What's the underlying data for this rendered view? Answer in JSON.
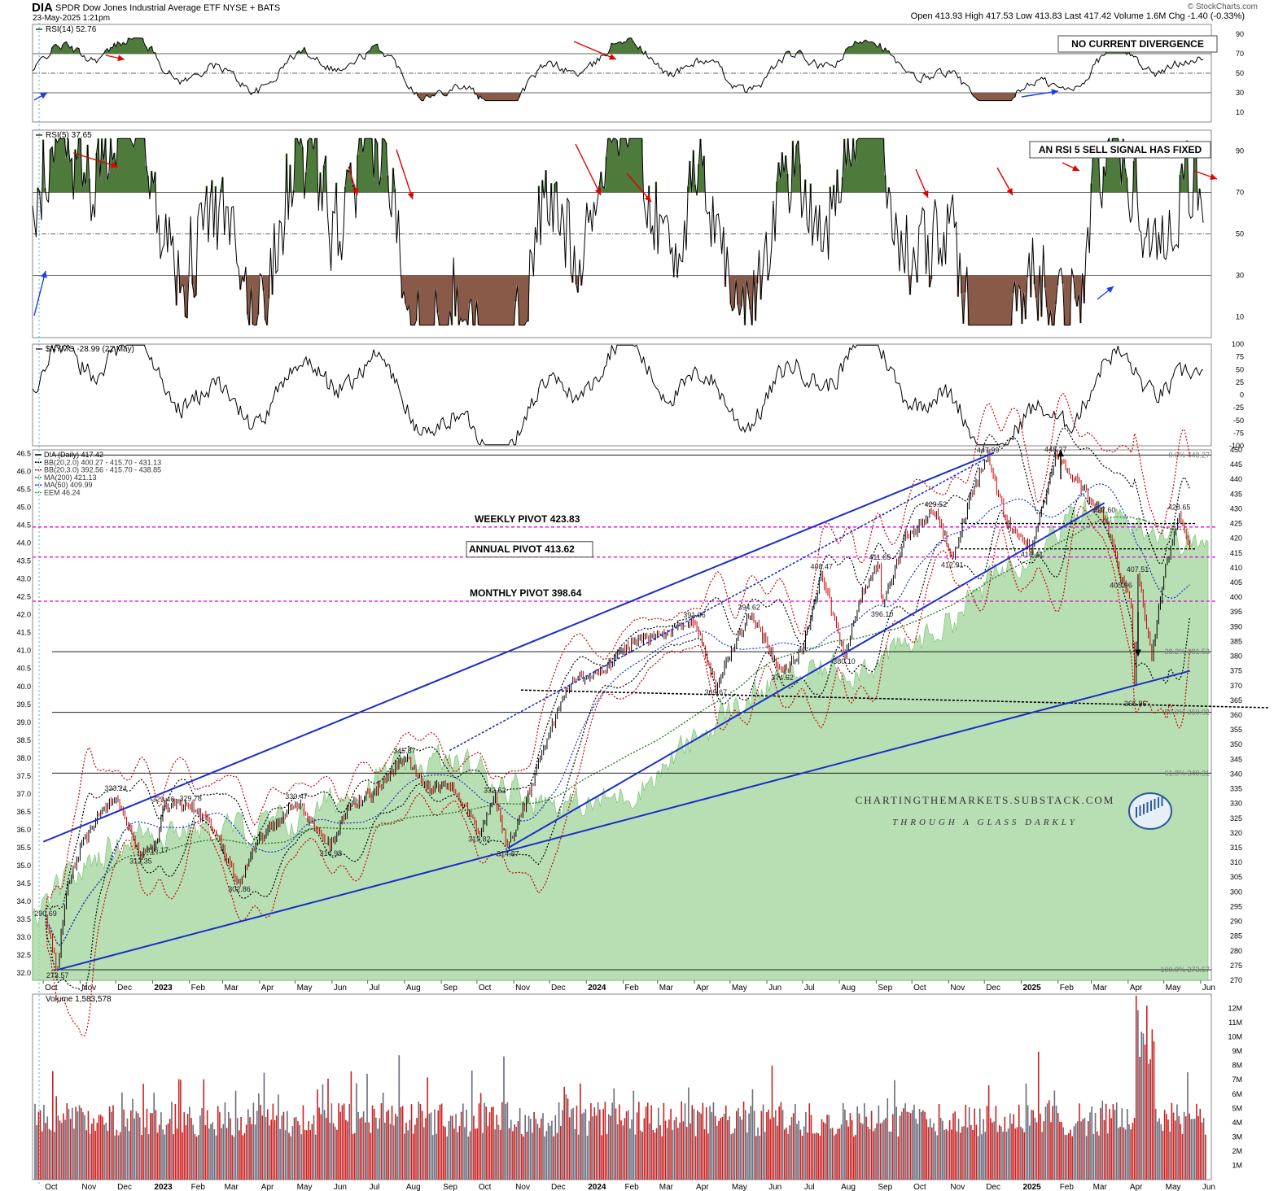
{
  "header": {
    "symbol": "DIA",
    "name": "SPDR Dow Jones Industrial Average ETF  NYSE + BATS",
    "date": "23-May-2025 1:21pm",
    "quote": "Open 413.93  High 417.53  Low 413.83  Last 417.42  Volume 1.6M  Chg -1.40 (-0.33%)",
    "watermark": "© StockCharts.com"
  },
  "colors": {
    "rsi_fill_over": "#4e7a3c",
    "rsi_fill_under": "#8a5a48",
    "trendline": "#1a2ec9",
    "pivot": "#e000e0",
    "eem_area": "#9fd49a",
    "bb_black": "#000000",
    "bb_red": "#cc0000",
    "ma200": "#2a7a2a",
    "ma50": "#1a2ec9",
    "arrow_red": "#e00000",
    "arrow_blue": "#1a3ee8",
    "vol_up": "#6a6a7a",
    "vol_down": "#cc2020"
  },
  "months": [
    "Oct",
    "Nov",
    "Dec",
    "2023",
    "Feb",
    "Mar",
    "Apr",
    "May",
    "Jun",
    "Jul",
    "Aug",
    "Sep",
    "Oct",
    "Nov",
    "Dec",
    "2024",
    "Feb",
    "Mar",
    "Apr",
    "May",
    "Jun",
    "Jul",
    "Aug",
    "Sep",
    "Oct",
    "Nov",
    "Dec",
    "2025",
    "Feb",
    "Mar",
    "Apr",
    "May",
    "Jun"
  ],
  "chart_data": [
    {
      "type": "line",
      "legend": "RSI(14) 52.76",
      "ylim": [
        0,
        100
      ],
      "yticks": [
        10,
        30,
        50,
        70,
        90
      ],
      "annotation": "NO CURRENT DIVERGENCE"
    },
    {
      "type": "line",
      "legend": "RSI(5) 37.65",
      "ylim": [
        0,
        100
      ],
      "yticks": [
        10,
        30,
        50,
        70,
        90
      ],
      "annotation": "AN RSI 5 SELL SIGNAL HAS FIXED"
    },
    {
      "type": "line",
      "legend": "$NYMO -28.99 (22 May)",
      "ylim": [
        -100,
        100
      ],
      "yticks": [
        "100",
        "75",
        "50",
        "25",
        "0",
        "-25",
        "-50",
        "-75",
        "-100"
      ]
    },
    {
      "type": "line",
      "legend": [
        "DIA (Daily) 417.42",
        "BB(20,2.0) 400.27 - 415.70 - 431.13",
        "BB(20,3.0) 392.56 - 415.70 - 438.85",
        "MA(200) 421.13",
        "MA(50) 409.99",
        "EEM 46.24"
      ],
      "ylim": [
        270,
        450
      ],
      "yticks_right": [
        "270",
        "275",
        "280",
        "285",
        "290",
        "295",
        "300",
        "305",
        "310",
        "315",
        "320",
        "325",
        "330",
        "335",
        "340",
        "345",
        "350",
        "355",
        "360",
        "365",
        "370",
        "375",
        "380",
        "385",
        "390",
        "395",
        "400",
        "405",
        "410",
        "415",
        "420",
        "425",
        "430",
        "435",
        "440",
        "445",
        "450"
      ],
      "yticks_left": [
        "32.0",
        "32.5",
        "33.0",
        "33.5",
        "34.0",
        "34.5",
        "35.0",
        "35.5",
        "36.0",
        "36.5",
        "37.0",
        "37.5",
        "38.0",
        "38.5",
        "39.0",
        "39.5",
        "40.0",
        "40.5",
        "41.0",
        "41.5",
        "42.0",
        "42.5",
        "43.0",
        "43.5",
        "44.0",
        "44.5",
        "45.0",
        "45.5",
        "46.0",
        "46.5"
      ],
      "pivots": [
        {
          "label": "WEEKLY PIVOT 423.83",
          "value": 423.83
        },
        {
          "label": "ANNUAL PIVOT 413.62",
          "value": 413.62
        },
        {
          "label": "MONTHLY PIVOT 398.64",
          "value": 398.64
        }
      ],
      "fib_levels": [
        {
          "label": "0.0% 448.27",
          "value": 448.27
        },
        {
          "label": "38.2% 381.53",
          "value": 381.53
        },
        {
          "label": "50.0% 360.92",
          "value": 360.92
        },
        {
          "label": "61.8% 340.31",
          "value": 340.31
        },
        {
          "label": "100.0% 273.57",
          "value": 273.57
        }
      ],
      "key_points": [
        {
          "date": "2022-10-13",
          "value": 273.57,
          "label": "273.57"
        },
        {
          "date": "2022-10-03",
          "value": 290.69,
          "label": "290.69"
        },
        {
          "date": "2022-12-01",
          "value": 333.24,
          "label": "333.24"
        },
        {
          "date": "2022-12-22",
          "value": 312.35,
          "label": "312.35"
        },
        {
          "date": "2023-01-05",
          "value": 316.17,
          "label": "316.17"
        },
        {
          "date": "2023-01-10",
          "value": 329.46,
          "label": "329.46"
        },
        {
          "date": "2023-02-02",
          "value": 329.78,
          "label": "329.78"
        },
        {
          "date": "2023-03-15",
          "value": 302.86,
          "label": "302.86"
        },
        {
          "date": "2023-05-02",
          "value": 330.47,
          "label": "330.47"
        },
        {
          "date": "2023-05-31",
          "value": 314.98,
          "label": "314.98"
        },
        {
          "date": "2023-08-01",
          "value": 345.87,
          "label": "345.87"
        },
        {
          "date": "2023-10-03",
          "value": 319.82,
          "label": "319.82"
        },
        {
          "date": "2023-10-16",
          "value": 332.52,
          "label": "332.52"
        },
        {
          "date": "2023-10-27",
          "value": 314.87,
          "label": "314.87"
        },
        {
          "date": "2024-04-01",
          "value": 391.96,
          "label": "391.96"
        },
        {
          "date": "2024-04-19",
          "value": 369.67,
          "label": "369.67"
        },
        {
          "date": "2024-05-17",
          "value": 394.62,
          "label": "394.62"
        },
        {
          "date": "2024-06-14",
          "value": 374.62,
          "label": "374.62"
        },
        {
          "date": "2024-07-17",
          "value": 408.47,
          "label": "408.47"
        },
        {
          "date": "2024-08-05",
          "value": 380.1,
          "label": "380.10"
        },
        {
          "date": "2024-09-06",
          "value": 396.1,
          "label": "396.10"
        },
        {
          "date": "2024-09-04",
          "value": 411.65,
          "label": "411.65"
        },
        {
          "date": "2024-10-21",
          "value": 429.52,
          "label": "429.52"
        },
        {
          "date": "2024-11-04",
          "value": 412.91,
          "label": "412.91"
        },
        {
          "date": "2024-12-04",
          "value": 447.99,
          "label": "447.99"
        },
        {
          "date": "2025-01-10",
          "value": 416.41,
          "label": "416.41"
        },
        {
          "date": "2025-01-30",
          "value": 448.27,
          "label": "448.27"
        },
        {
          "date": "2025-03-12",
          "value": 427.6,
          "label": "427.60"
        },
        {
          "date": "2025-03-26",
          "value": 405.96,
          "label": "405.96"
        },
        {
          "date": "2025-04-07",
          "value": 365.86,
          "label": "365.86"
        },
        {
          "date": "2025-04-09",
          "value": 407.51,
          "label": "407.51"
        },
        {
          "date": "2025-05-14",
          "value": 428.65,
          "label": "428.65"
        }
      ],
      "price_path": [
        [
          "2022-10-03",
          290.69
        ],
        [
          "2022-10-13",
          273.57
        ],
        [
          "2022-10-20",
          300
        ],
        [
          "2022-11-01",
          315
        ],
        [
          "2022-11-15",
          325
        ],
        [
          "2022-12-01",
          333.24
        ],
        [
          "2022-12-22",
          312.35
        ],
        [
          "2023-01-05",
          316.17
        ],
        [
          "2023-01-10",
          329.46
        ],
        [
          "2023-02-02",
          329.78
        ],
        [
          "2023-02-20",
          322
        ],
        [
          "2023-03-15",
          302.86
        ],
        [
          "2023-04-01",
          318
        ],
        [
          "2023-05-02",
          330.47
        ],
        [
          "2023-05-31",
          314.98
        ],
        [
          "2023-06-15",
          330
        ],
        [
          "2023-07-05",
          333
        ],
        [
          "2023-08-01",
          345.87
        ],
        [
          "2023-08-20",
          336
        ],
        [
          "2023-09-10",
          336
        ],
        [
          "2023-10-03",
          319.82
        ],
        [
          "2023-10-16",
          332.52
        ],
        [
          "2023-10-27",
          314.87
        ],
        [
          "2023-11-15",
          335
        ],
        [
          "2023-12-01",
          355
        ],
        [
          "2023-12-20",
          372
        ],
        [
          "2024-01-15",
          375
        ],
        [
          "2024-02-10",
          385
        ],
        [
          "2024-03-10",
          388
        ],
        [
          "2024-04-01",
          391.96
        ],
        [
          "2024-04-19",
          369.67
        ],
        [
          "2024-05-17",
          394.62
        ],
        [
          "2024-06-14",
          374.62
        ],
        [
          "2024-07-01",
          382
        ],
        [
          "2024-07-17",
          408.47
        ],
        [
          "2024-08-05",
          380.1
        ],
        [
          "2024-08-20",
          402
        ],
        [
          "2024-09-04",
          411.65
        ],
        [
          "2024-09-06",
          396.1
        ],
        [
          "2024-09-25",
          420
        ],
        [
          "2024-10-21",
          429.52
        ],
        [
          "2024-11-04",
          412.91
        ],
        [
          "2024-11-20",
          435
        ],
        [
          "2024-12-04",
          447.99
        ],
        [
          "2024-12-20",
          425
        ],
        [
          "2025-01-10",
          416.41
        ],
        [
          "2025-01-30",
          448.27
        ],
        [
          "2025-02-15",
          440
        ],
        [
          "2025-03-12",
          427.6
        ],
        [
          "2025-03-26",
          405.96
        ],
        [
          "2025-04-03",
          400
        ],
        [
          "2025-04-07",
          365.86
        ],
        [
          "2025-04-09",
          407.51
        ],
        [
          "2025-04-21",
          380
        ],
        [
          "2025-05-01",
          408
        ],
        [
          "2025-05-14",
          428.65
        ],
        [
          "2025-05-23",
          417.42
        ]
      ],
      "trendlines": [
        {
          "from": [
            "2022-10-01",
            317
          ],
          "to": [
            "2024-12-09",
            449
          ]
        },
        {
          "from": [
            "2022-10-13",
            273.57
          ],
          "to": [
            "2025-05-23",
            375
          ]
        },
        {
          "from": [
            "2023-10-27",
            314.87
          ],
          "to": [
            "2025-03-12",
            432
          ]
        }
      ],
      "watermark": [
        "CHARTINGTHEMARKETS.SUBSTACK.COM",
        "THROUGH A GLASS DARKLY"
      ]
    },
    {
      "type": "bar",
      "legend": "Volume 1,583,578",
      "ylim": [
        0,
        13
      ],
      "yticks": [
        "1M",
        "2M",
        "3M",
        "4M",
        "5M",
        "6M",
        "7M",
        "8M",
        "9M",
        "10M",
        "11M",
        "12M"
      ]
    }
  ]
}
